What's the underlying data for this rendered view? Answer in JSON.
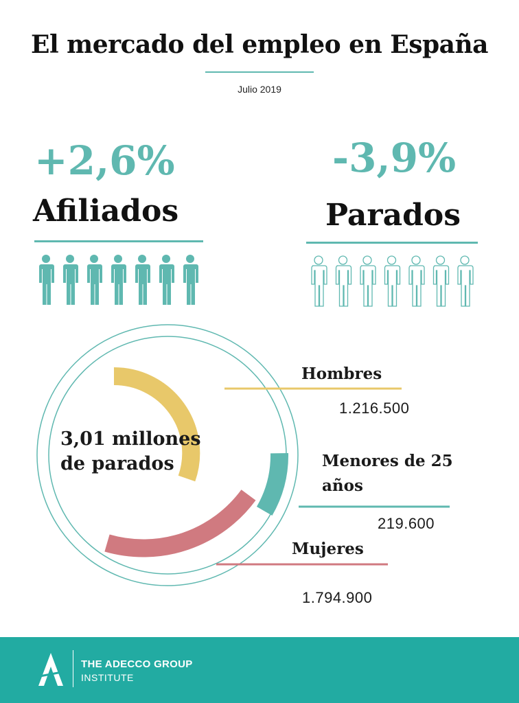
{
  "header": {
    "title": "El mercado del empleo en España",
    "date": "Julio 2019"
  },
  "stats": {
    "afiliados": {
      "change": "+2,6%",
      "label": "Afiliados",
      "icon": "person-filled-icon",
      "icon_count": 7
    },
    "parados": {
      "change": "-3,9%",
      "label": "Parados",
      "icon": "person-outline-icon",
      "icon_count": 7
    }
  },
  "colors": {
    "accent": "#5fb8b0",
    "hombres": "#e8c86a",
    "menores": "#5fb8b0",
    "mujeres": "#d07a80",
    "footer": "#22aba2"
  },
  "chart_data": {
    "type": "pie",
    "center_label": "3,01 millones de parados",
    "total": 3011400,
    "categories": [
      "Hombres",
      "Menores de 25 años",
      "Mujeres"
    ],
    "values": [
      1216500,
      219600,
      1794900
    ],
    "value_labels": [
      "1.216.500",
      "219.600",
      "1.794.900"
    ]
  },
  "footer": {
    "brand": "THE ADECCO GROUP",
    "sub": "INSTITUTE",
    "logo_icon": "adecco-a-logo-icon"
  }
}
